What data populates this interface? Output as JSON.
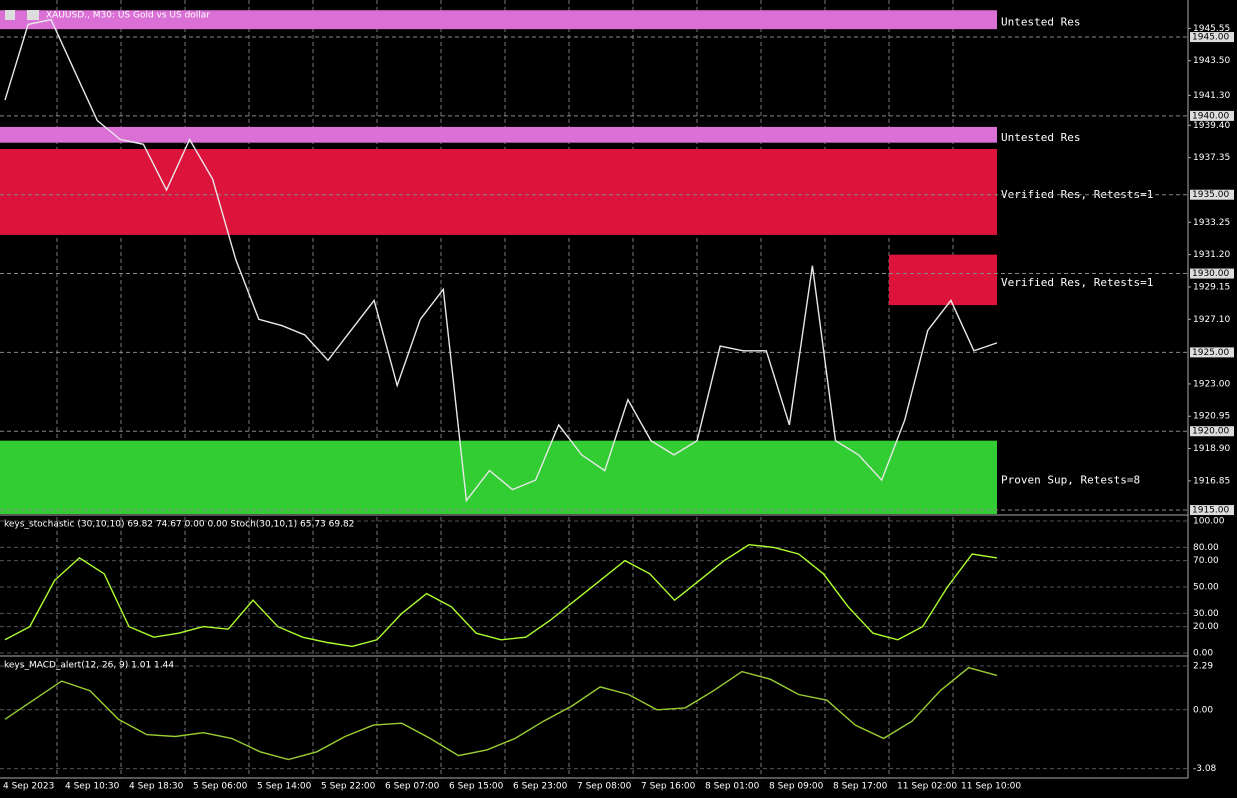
{
  "header": {
    "title": "XAUUSD., M30: US Gold vs US dollar"
  },
  "price_axis": {
    "lim": [
      1914.75,
      1947.35
    ],
    "ticks": [
      1945.55,
      {
        "value": 1943.5,
        "label": "1943.50"
      },
      {
        "value": 1941.3,
        "label": "1941.30"
      },
      {
        "value": 1939.4,
        "label": "1939.40"
      },
      1937.35,
      1933.25,
      {
        "value": 1931.2,
        "label": "1931.20"
      },
      1929.15,
      {
        "value": 1927.1,
        "label": "1927.10"
      },
      {
        "value": 1923,
        "label": "1923.00"
      },
      1920.95,
      {
        "value": 1918.9,
        "label": "1918.90"
      },
      1916.85
    ],
    "levels": [
      {
        "value": 1945,
        "label": "1945.00"
      },
      {
        "value": 1940,
        "label": "1940.00"
      },
      {
        "value": 1935,
        "label": "1935.00"
      },
      {
        "value": 1930,
        "label": "1930.00"
      },
      {
        "value": 1925,
        "label": "1925.00"
      },
      {
        "value": 1920,
        "label": "1920.00"
      },
      {
        "value": 1915,
        "label": "1915.00"
      }
    ]
  },
  "zones": [
    {
      "label": "Untested Res",
      "top": 1946.7,
      "bottom": 1945.5,
      "color": "#da70d6"
    },
    {
      "label": "Untested Res",
      "top": 1939.3,
      "bottom": 1938.3,
      "color": "#da70d6"
    },
    {
      "label": "Verified Res, Retests=1",
      "top": 1937.9,
      "bottom": 1932.45,
      "color": "#dc143c"
    },
    {
      "label": "Verified Res, Retests=1",
      "top": 1931.2,
      "bottom": 1928.0,
      "color": "#dc143c",
      "start": 14
    },
    {
      "label": "Proven Sup, Retests=8",
      "top": 1919.4,
      "bottom": 1914.75,
      "color": "#32cd32"
    }
  ],
  "price": [
    1941.0,
    1945.8,
    1946.1,
    1942.9,
    1939.7,
    1938.5,
    1938.2,
    1935.3,
    1938.5,
    1936.0,
    1930.9,
    1927.1,
    1926.7,
    1926.1,
    1924.5,
    1926.4,
    1928.3,
    1922.9,
    1927.1,
    1929.0,
    1915.6,
    1917.5,
    1916.3,
    1916.9,
    1920.4,
    1918.5,
    1917.5,
    1922.0,
    1919.4,
    1918.5,
    1919.4,
    1925.4,
    1925.1,
    1925.1,
    1920.4,
    1930.5,
    1919.4,
    1918.5,
    1916.9,
    1920.7,
    1926.4,
    1928.3,
    1925.1,
    1925.6
  ],
  "stochastic": {
    "label": "keys_stochastic (30,10,10) 69.82 74.67 0.00 0.00 Stoch(30,10,1) 65.73 69.82",
    "lim": [
      -1.5,
      103
    ],
    "ticks": [
      {
        "value": 100,
        "label": "100.00"
      },
      {
        "value": 80,
        "label": "80.00"
      },
      {
        "value": 70,
        "label": "70.00"
      },
      {
        "value": 50,
        "label": "50.00"
      },
      {
        "value": 30,
        "label": "30.00"
      },
      {
        "value": 20,
        "label": "20.00"
      },
      {
        "value": 0,
        "label": "0.00"
      }
    ],
    "values": [
      10,
      20,
      55,
      72,
      60,
      20,
      12,
      15,
      20,
      18,
      40,
      20,
      12,
      8,
      5,
      10,
      30,
      45,
      35,
      15,
      10,
      12,
      25,
      40,
      55,
      70,
      60,
      40,
      55,
      70,
      82,
      80,
      75,
      60,
      35,
      15,
      10,
      20,
      50,
      75,
      72
    ]
  },
  "macd": {
    "label": "keys_MACD_alert(12, 26, 9) 1.01 1.44",
    "lim": [
      -3.57,
      2.71
    ],
    "ticks": [
      2.29,
      {
        "value": 0,
        "label": "0.00"
      },
      -3.08
    ],
    "values": [
      -0.5,
      0.5,
      1.5,
      1.0,
      -0.5,
      -1.3,
      -1.4,
      -1.2,
      -1.5,
      -2.2,
      -2.6,
      -2.2,
      -1.4,
      -0.8,
      -0.7,
      -1.5,
      -2.4,
      -2.1,
      -1.5,
      -0.6,
      0.2,
      1.2,
      0.8,
      0.0,
      0.1,
      1.0,
      2.0,
      1.6,
      0.8,
      0.5,
      -0.8,
      -1.5,
      -0.6,
      1.0,
      2.2,
      1.8
    ]
  },
  "time_axis": [
    "4 Sep 2023",
    "4 Sep 10:30",
    "4 Sep 18:30",
    "5 Sep 06:00",
    "5 Sep 14:00",
    "5 Sep 22:00",
    "6 Sep 07:00",
    "6 Sep 15:00",
    "6 Sep 23:00",
    "7 Sep 08:00",
    "7 Sep 16:00",
    "8 Sep 01:00",
    "8 Sep 09:00",
    "8 Sep 17:00",
    "11 Sep 02:00",
    "11 Sep 10:00"
  ]
}
